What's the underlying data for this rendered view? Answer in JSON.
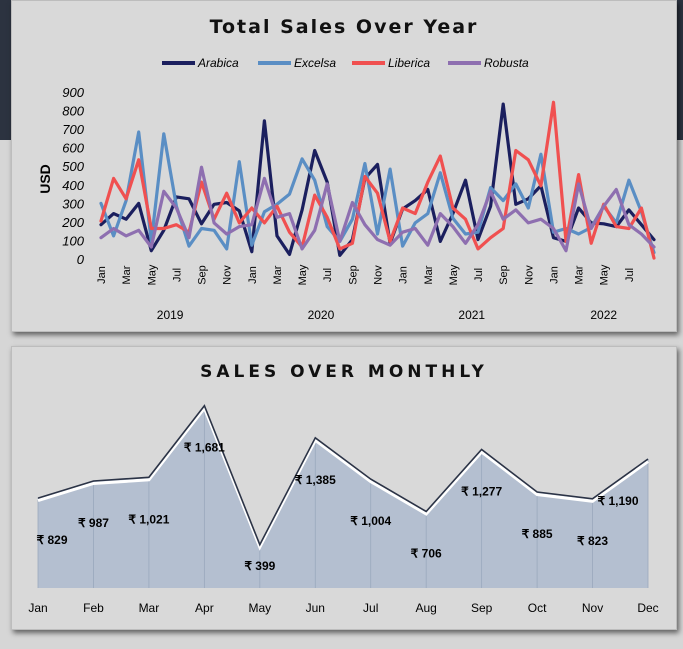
{
  "chart_data": [
    {
      "type": "line",
      "title": "Total Sales Over Year",
      "ylabel": "USD",
      "ylim": [
        0,
        900
      ],
      "yticks": [
        "0",
        "100",
        "200",
        "300",
        "400",
        "500",
        "600",
        "700",
        "800",
        "900"
      ],
      "legend_position": "top",
      "grid": false,
      "month_tick_labels": [
        "Jan",
        "Mar",
        "May",
        "Jul",
        "Sep",
        "Nov",
        "Jan",
        "Mar",
        "May",
        "Jul",
        "Sep",
        "Nov",
        "Jan",
        "Mar",
        "May",
        "Jul",
        "Sep",
        "Nov",
        "Jan",
        "Mar",
        "May",
        "Jul"
      ],
      "years": [
        "2019",
        "2020",
        "2021",
        "2022"
      ],
      "series": [
        {
          "name": "Arabica",
          "color": "#1b1f5e",
          "values": [
            190,
            250,
            220,
            305,
            50,
            160,
            340,
            330,
            195,
            300,
            310,
            265,
            45,
            750,
            130,
            30,
            270,
            590,
            420,
            25,
            110,
            440,
            515,
            90,
            275,
            320,
            380,
            100,
            250,
            430,
            110,
            290,
            840,
            300,
            330,
            400,
            120,
            100,
            280,
            200,
            195,
            180,
            270,
            190,
            110
          ]
        },
        {
          "name": "Excelsa",
          "color": "#5a8ec4",
          "values": [
            305,
            130,
            320,
            690,
            100,
            680,
            290,
            75,
            170,
            160,
            60,
            530,
            80,
            260,
            300,
            355,
            545,
            430,
            180,
            100,
            220,
            520,
            140,
            490,
            75,
            200,
            250,
            470,
            225,
            140,
            150,
            390,
            320,
            410,
            280,
            570,
            150,
            170,
            140,
            175,
            290,
            200,
            430,
            260,
            40
          ]
        },
        {
          "name": "Liberica",
          "color": "#f05050",
          "values": [
            210,
            440,
            330,
            540,
            170,
            170,
            190,
            150,
            420,
            220,
            360,
            200,
            280,
            200,
            290,
            150,
            70,
            350,
            230,
            60,
            90,
            450,
            360,
            100,
            280,
            250,
            420,
            560,
            280,
            220,
            60,
            120,
            170,
            590,
            540,
            400,
            850,
            100,
            460,
            90,
            300,
            180,
            170,
            280,
            10
          ]
        },
        {
          "name": "Robusta",
          "color": "#8e6fb0",
          "values": [
            120,
            170,
            130,
            160,
            70,
            370,
            280,
            120,
            500,
            200,
            140,
            180,
            190,
            440,
            230,
            250,
            60,
            160,
            410,
            100,
            310,
            190,
            110,
            80,
            150,
            170,
            80,
            250,
            180,
            90,
            190,
            370,
            220,
            270,
            200,
            220,
            170,
            50,
            410,
            170,
            290,
            380,
            190,
            140,
            70
          ]
        }
      ]
    },
    {
      "type": "area",
      "title": "SALES OVER MONTHLY",
      "categories": [
        "Jan",
        "Feb",
        "Mar",
        "Apr",
        "May",
        "Jun",
        "Jul",
        "Aug",
        "Sep",
        "Oct",
        "Nov",
        "Dec"
      ],
      "values": [
        829,
        987,
        1021,
        1681,
        399,
        1385,
        1004,
        706,
        1277,
        885,
        823,
        1190
      ],
      "value_labels": [
        "₹ 829",
        "₹ 987",
        "₹ 1,021",
        "₹ 1,681",
        "₹ 399",
        "₹ 1,385",
        "₹ 1,004",
        "₹ 706",
        "₹ 1,277",
        "₹ 885",
        "₹ 823",
        "₹ 1,190"
      ],
      "ylim": [
        0,
        1900
      ],
      "fill_color": "#b4bfd0",
      "outline_color": "#2b3346",
      "grid": false
    }
  ]
}
